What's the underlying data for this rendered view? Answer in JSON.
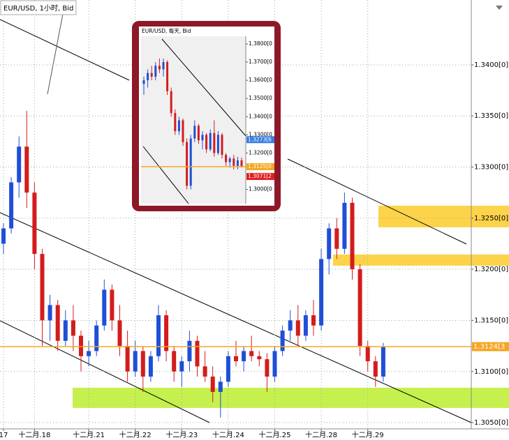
{
  "chart_data": [
    {
      "type": "candlestick",
      "title": "EUR/USD, 1小时, Bid",
      "categories": [
        "17",
        null,
        null,
        null,
        "十二月.18",
        null,
        null,
        null,
        null,
        null,
        null,
        "十二月.21",
        null,
        null,
        null,
        null,
        null,
        "十二月.22",
        null,
        null,
        null,
        null,
        null,
        "十二月.23",
        null,
        null,
        null,
        null,
        null,
        "十二月.24",
        null,
        null,
        null,
        null,
        null,
        "十二月.25",
        null,
        null,
        null,
        null,
        null,
        "十二月.28",
        null,
        null,
        null,
        null,
        null,
        "十二月.29",
        null,
        null
      ],
      "open": [
        1.3225,
        1.324,
        1.3285,
        1.332,
        1.3275,
        1.3215,
        1.315,
        1.3165,
        1.313,
        1.315,
        1.3135,
        1.3115,
        1.312,
        1.3145,
        1.318,
        1.315,
        1.3125,
        1.31,
        1.312,
        1.3095,
        1.3115,
        1.3155,
        1.312,
        1.31,
        1.311,
        1.313,
        1.3105,
        1.3095,
        1.308,
        1.309,
        1.3115,
        1.311,
        1.312,
        1.3115,
        1.3112,
        1.3095,
        1.312,
        1.314,
        1.315,
        1.3135,
        1.3155,
        1.3145,
        1.321,
        1.324,
        1.322,
        1.3265,
        1.32,
        1.3125,
        1.311,
        1.3095
      ],
      "high": [
        1.3245,
        1.329,
        1.333,
        1.3355,
        1.3285,
        1.322,
        1.3175,
        1.317,
        1.316,
        1.3165,
        1.314,
        1.313,
        1.315,
        1.319,
        1.3185,
        1.3165,
        1.314,
        1.313,
        1.3125,
        1.312,
        1.3165,
        1.316,
        1.3125,
        1.3115,
        1.314,
        1.3135,
        1.312,
        1.3105,
        1.3095,
        1.312,
        1.313,
        1.3125,
        1.3135,
        1.312,
        1.3118,
        1.3125,
        1.3145,
        1.316,
        1.3165,
        1.316,
        1.317,
        1.322,
        1.3245,
        1.325,
        1.3275,
        1.327,
        1.3205,
        1.313,
        1.3115,
        1.3128
      ],
      "low": [
        1.3215,
        1.3235,
        1.327,
        1.326,
        1.32,
        1.3125,
        1.313,
        1.312,
        1.3125,
        1.312,
        1.31,
        1.3105,
        1.3115,
        1.314,
        1.314,
        1.3115,
        1.309,
        1.3095,
        1.308,
        1.309,
        1.311,
        1.311,
        1.309,
        1.3085,
        1.31,
        1.3095,
        1.309,
        1.307,
        1.3055,
        1.3085,
        1.3105,
        1.31,
        1.311,
        1.3105,
        1.308,
        1.309,
        1.3115,
        1.313,
        1.3125,
        1.313,
        1.3135,
        1.314,
        1.3195,
        1.321,
        1.3215,
        1.319,
        1.3115,
        1.31,
        1.3085,
        1.309
      ],
      "close": [
        1.324,
        1.3285,
        1.332,
        1.3275,
        1.3215,
        1.315,
        1.3165,
        1.313,
        1.315,
        1.3135,
        1.3115,
        1.312,
        1.3145,
        1.318,
        1.315,
        1.3125,
        1.31,
        1.312,
        1.3095,
        1.3115,
        1.3155,
        1.312,
        1.31,
        1.311,
        1.313,
        1.3105,
        1.3095,
        1.308,
        1.309,
        1.3115,
        1.311,
        1.312,
        1.3115,
        1.3112,
        1.3095,
        1.312,
        1.314,
        1.315,
        1.3135,
        1.3155,
        1.3145,
        1.321,
        1.324,
        1.322,
        1.3265,
        1.32,
        1.3125,
        1.311,
        1.3095,
        1.3124
      ],
      "up_color": "#1f4fd6",
      "down_color": "#d41c1c",
      "ylim": [
        1.30439,
        1.34634
      ],
      "yticks": [
        {
          "value": 1.305,
          "label": "1.3050[0]"
        },
        {
          "value": 1.31,
          "label": "1.3100[0]"
        },
        {
          "value": 1.315,
          "label": "1.3150[0]"
        },
        {
          "value": 1.32,
          "label": "1.3200[0]"
        },
        {
          "value": 1.325,
          "label": "1.3250[0]"
        },
        {
          "value": 1.33,
          "label": "1.3300[0]"
        },
        {
          "value": 1.335,
          "label": "1.3350[0]"
        },
        {
          "value": 1.34,
          "label": "1.3400[0]"
        }
      ],
      "price_labels": [
        {
          "value": 1.31243,
          "label": "1.3124[3",
          "color": "#f5a623",
          "line": true
        }
      ],
      "grid": true
    },
    {
      "type": "candlestick",
      "title": "EUR/USD, 每天, Bid",
      "open": [
        1.358,
        1.36,
        1.364,
        1.362,
        1.368,
        1.366,
        1.37,
        1.354,
        1.342,
        1.332,
        1.338,
        1.326,
        1.302,
        1.328,
        1.335,
        1.327,
        1.33,
        1.322,
        1.331,
        1.32,
        1.33,
        1.319,
        1.315,
        1.317,
        1.313,
        1.316
      ],
      "high": [
        1.362,
        1.366,
        1.368,
        1.37,
        1.372,
        1.372,
        1.371,
        1.356,
        1.344,
        1.34,
        1.339,
        1.328,
        1.33,
        1.338,
        1.336,
        1.332,
        1.331,
        1.333,
        1.338,
        1.332,
        1.331,
        1.32,
        1.318,
        1.319,
        1.318,
        1.3175
      ],
      "low": [
        1.352,
        1.356,
        1.36,
        1.36,
        1.364,
        1.362,
        1.352,
        1.34,
        1.33,
        1.33,
        1.324,
        1.3,
        1.3,
        1.326,
        1.325,
        1.322,
        1.32,
        1.321,
        1.318,
        1.319,
        1.317,
        1.313,
        1.312,
        1.311,
        1.311,
        1.312
      ],
      "close": [
        1.36,
        1.364,
        1.362,
        1.368,
        1.366,
        1.37,
        1.354,
        1.342,
        1.332,
        1.338,
        1.326,
        1.302,
        1.328,
        1.335,
        1.327,
        1.33,
        1.322,
        1.331,
        1.32,
        1.33,
        1.319,
        1.315,
        1.317,
        1.313,
        1.316,
        1.3125
      ],
      "up_color": "#1f4fd6",
      "down_color": "#d41c1c",
      "ylim": [
        1.2922,
        1.3842
      ],
      "yticks": [
        {
          "value": 1.3,
          "label": "1.3000[0"
        },
        {
          "value": 1.32,
          "label": "1.3200[0"
        },
        {
          "value": 1.33,
          "label": "1.3300[0"
        },
        {
          "value": 1.34,
          "label": "1.3400[0"
        },
        {
          "value": 1.35,
          "label": "1.3500[0"
        },
        {
          "value": 1.36,
          "label": "1.3600[0"
        },
        {
          "value": 1.37,
          "label": "1.3700[0"
        },
        {
          "value": 1.38,
          "label": "1.3800[0"
        }
      ],
      "price_labels": [
        {
          "value": 1.32736,
          "label": "1.3273[6",
          "color": "#3a7de0",
          "line": false
        },
        {
          "value": 1.3125,
          "label": "1.3125[0",
          "color": "#f5a623",
          "line": true
        },
        {
          "value": 1.30712,
          "label": "1.3071[2",
          "color": "#e02020",
          "line": false
        }
      ],
      "grid": false
    }
  ]
}
